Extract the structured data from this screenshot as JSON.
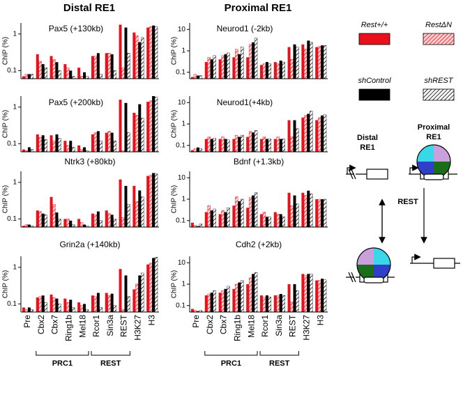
{
  "headers": [
    "Distal RE1",
    "Proximal RE1"
  ],
  "group_labels": [
    "PRC1",
    "REST"
  ],
  "diagram": {
    "distal": [
      "Distal",
      "RE1"
    ],
    "proximal": [
      "Proximal",
      "RE1"
    ],
    "arrow_label": "REST"
  },
  "chart_data": [
    {
      "type": "bar",
      "title": "Pax5 (+130kb)",
      "ylabel": "ChIP  (%)",
      "log": true,
      "ylim": [
        0.06,
        2
      ],
      "yticks": [
        0.1,
        1
      ],
      "categories": [
        "Pre",
        "Cbx2",
        "Cbx7",
        "Ring1b",
        "Mel18",
        "Rcor1",
        "Sin3a",
        "REST",
        "H3K27",
        "H3"
      ],
      "series": [
        {
          "name": "Rest+/+",
          "color": "#e8101a",
          "values": [
            0.07,
            0.28,
            0.25,
            0.15,
            0.12,
            0.25,
            0.3,
            1.8,
            1.1,
            1.5
          ]
        },
        {
          "name": "RestΔN",
          "color": "#e8101a",
          "pattern": "hatch",
          "values": [
            0.08,
            0.18,
            0.2,
            0.12,
            0.07,
            0.25,
            0.3,
            0.12,
            0.9,
            1.6
          ]
        },
        {
          "name": "shControl",
          "color": "#000000",
          "values": [
            0.08,
            0.15,
            0.17,
            0.1,
            0.09,
            0.3,
            0.28,
            1.5,
            0.6,
            1.7
          ]
        },
        {
          "name": "shREST",
          "color": "#000000",
          "pattern": "hatch",
          "values": [
            0.08,
            0.12,
            0.1,
            0.07,
            0.07,
            0.08,
            0.1,
            0.3,
            0.8,
            1.6
          ]
        }
      ]
    },
    {
      "type": "bar",
      "title": "Pax5 (+200kb)",
      "ylabel": "ChIP  (%)",
      "log": true,
      "ylim": [
        0.06,
        2
      ],
      "yticks": [
        0.1,
        1
      ],
      "categories": [
        "Pre",
        "Cbx2",
        "Cbx7",
        "Ring1b",
        "Mel18",
        "Rcor1",
        "Sin3a",
        "REST",
        "H3K27",
        "H3"
      ],
      "series": [
        {
          "name": "Rest+/+",
          "color": "#e8101a",
          "values": [
            0.07,
            0.18,
            0.17,
            0.12,
            0.09,
            0.18,
            0.2,
            1.6,
            0.7,
            1.4
          ]
        },
        {
          "name": "RestΔN",
          "color": "#e8101a",
          "pattern": "hatch",
          "values": [
            0.065,
            0.15,
            0.12,
            0.09,
            0.07,
            0.2,
            0.22,
            0.065,
            0.6,
            1.5
          ]
        },
        {
          "name": "shControl",
          "color": "#000000",
          "values": [
            0.08,
            0.17,
            0.18,
            0.12,
            0.08,
            0.22,
            0.2,
            1.3,
            1.2,
            2
          ]
        },
        {
          "name": "shREST",
          "color": "#000000",
          "pattern": "hatch",
          "values": [
            0.07,
            0.13,
            0.14,
            0.08,
            0.065,
            0.12,
            0.12,
            0.2,
            0.5,
            1.9
          ]
        }
      ]
    },
    {
      "type": "bar",
      "title": "Ntrk3 (+80kb)",
      "ylabel": "ChIP  (%)",
      "log": true,
      "ylim": [
        0.06,
        2
      ],
      "yticks": [
        0.1,
        1
      ],
      "categories": [
        "Pre",
        "Cbx2",
        "Cbx7",
        "Ring1b",
        "Mel18",
        "Rcor1",
        "Sin3a",
        "REST",
        "H3K27",
        "H3"
      ],
      "series": [
        {
          "name": "Rest+/+",
          "color": "#e8101a",
          "values": [
            0.065,
            0.17,
            0.4,
            0.1,
            0.1,
            0.14,
            0.17,
            1.2,
            0.8,
            1.5
          ]
        },
        {
          "name": "RestΔN",
          "color": "#e8101a",
          "pattern": "hatch",
          "values": [
            0.07,
            0.16,
            0.25,
            0.1,
            0.08,
            0.13,
            0.14,
            0.11,
            0.3,
            1.6
          ]
        },
        {
          "name": "shControl",
          "color": "#000000",
          "values": [
            0.07,
            0.14,
            0.15,
            0.09,
            0.07,
            0.16,
            0.13,
            0.8,
            0.6,
            1.8
          ]
        },
        {
          "name": "shREST",
          "color": "#000000",
          "pattern": "hatch",
          "values": [
            0.065,
            0.13,
            0.1,
            0.07,
            0.065,
            0.09,
            0.1,
            0.25,
            0.4,
            1.7
          ]
        }
      ]
    },
    {
      "type": "bar",
      "title": "Grin2a (+140kb)",
      "ylabel": "ChIP  (%)",
      "log": true,
      "ylim": [
        0.06,
        2
      ],
      "yticks": [
        0.1,
        1
      ],
      "categories": [
        "Pre",
        "Cbx2",
        "Cbx7",
        "Ring1b",
        "Mel18",
        "Rcor1",
        "Sin3a",
        "REST",
        "H3K27",
        "H3"
      ],
      "series": [
        {
          "name": "Rest+/+",
          "color": "#e8101a",
          "values": [
            0.08,
            0.15,
            0.18,
            0.14,
            0.11,
            0.17,
            0.2,
            0.9,
            0.25,
            1.2
          ]
        },
        {
          "name": "RestΔN",
          "color": "#e8101a",
          "pattern": "hatch",
          "values": [
            0.07,
            0.16,
            0.15,
            0.11,
            0.09,
            0.16,
            0.17,
            0.07,
            0.35,
            1.3
          ]
        },
        {
          "name": "shControl",
          "color": "#000000",
          "values": [
            0.08,
            0.17,
            0.14,
            0.13,
            0.1,
            0.2,
            0.19,
            0.6,
            0.6,
            1.8
          ]
        },
        {
          "name": "shREST",
          "color": "#000000",
          "pattern": "hatch",
          "values": [
            0.07,
            0.11,
            0.1,
            0.08,
            0.07,
            0.08,
            0.09,
            0.16,
            0.7,
            1.9
          ]
        }
      ]
    },
    {
      "type": "bar",
      "title": "Neurod1 (-2kb)",
      "ylabel": "ChIP  (%)",
      "log": true,
      "ylim": [
        0.05,
        20
      ],
      "yticks": [
        0.1,
        1,
        10
      ],
      "categories": [
        "Pre",
        "Cbx2",
        "Cbx7",
        "Ring1b",
        "Mel18",
        "Rcor1",
        "Sin3a",
        "REST",
        "H3K27",
        "H3"
      ],
      "series": [
        {
          "name": "Rest+/+",
          "color": "#e8101a",
          "values": [
            0.06,
            0.3,
            0.4,
            0.5,
            0.5,
            0.22,
            0.3,
            1.5,
            2,
            1.5
          ]
        },
        {
          "name": "RestΔN",
          "color": "#e8101a",
          "pattern": "hatch",
          "values": [
            0.08,
            0.5,
            0.6,
            1.2,
            2,
            0.25,
            0.25,
            0.4,
            1.2,
            1.6
          ]
        },
        {
          "name": "shControl",
          "color": "#000000",
          "values": [
            0.07,
            0.4,
            0.7,
            0.7,
            2.5,
            0.3,
            0.35,
            2,
            3,
            1.8
          ]
        },
        {
          "name": "shREST",
          "color": "#000000",
          "pattern": "hatch",
          "values": [
            0.07,
            0.6,
            0.8,
            1.5,
            4,
            0.25,
            0.3,
            1.5,
            2.5,
            1.8
          ]
        }
      ]
    },
    {
      "type": "bar",
      "title": "Neurod1(+4kb)",
      "ylabel": "ChIP  (%)",
      "log": true,
      "ylim": [
        0.05,
        20
      ],
      "yticks": [
        0.1,
        1,
        10
      ],
      "categories": [
        "Pre",
        "Cbx2",
        "Cbx7",
        "Ring1b",
        "Mel18",
        "Rcor1",
        "Sin3a",
        "REST",
        "H3K27",
        "H3"
      ],
      "series": [
        {
          "name": "Rest+/+",
          "color": "#e8101a",
          "values": [
            0.06,
            0.2,
            0.2,
            0.2,
            0.25,
            0.2,
            0.2,
            1.5,
            2,
            1.5
          ]
        },
        {
          "name": "RestΔN",
          "color": "#e8101a",
          "pattern": "hatch",
          "values": [
            0.07,
            0.25,
            0.25,
            0.3,
            0.45,
            0.25,
            0.25,
            0.25,
            2.5,
            2
          ]
        },
        {
          "name": "shControl",
          "color": "#000000",
          "values": [
            0.08,
            0.2,
            0.2,
            0.25,
            0.4,
            0.2,
            0.2,
            1.5,
            3,
            2.5
          ]
        },
        {
          "name": "shREST",
          "color": "#000000",
          "pattern": "hatch",
          "values": [
            0.07,
            0.22,
            0.18,
            0.3,
            0.5,
            0.2,
            0.2,
            0.6,
            4,
            2.7
          ]
        }
      ]
    },
    {
      "type": "bar",
      "title": "Bdnf (+1.3kb)",
      "ylabel": "ChIP  (%)",
      "log": true,
      "ylim": [
        0.05,
        20
      ],
      "yticks": [
        0.1,
        1,
        10
      ],
      "categories": [
        "Pre",
        "Cbx2",
        "Cbx7",
        "Ring1b",
        "Mel18",
        "Rcor1",
        "Sin3a",
        "REST",
        "H3K27",
        "H3"
      ],
      "series": [
        {
          "name": "Rest+/+",
          "color": "#e8101a",
          "values": [
            0.08,
            0.25,
            0.2,
            0.5,
            0.4,
            0.2,
            0.25,
            2,
            2,
            1
          ]
        },
        {
          "name": "RestΔN",
          "color": "#e8101a",
          "pattern": "hatch",
          "values": [
            0.06,
            0.5,
            0.3,
            1.3,
            1.2,
            0.25,
            0.2,
            0.5,
            1.5,
            1
          ]
        },
        {
          "name": "shControl",
          "color": "#000000",
          "values": [
            0.055,
            0.3,
            0.25,
            0.8,
            1.5,
            0.15,
            0.2,
            1.5,
            2.5,
            1
          ]
        },
        {
          "name": "shREST",
          "color": "#000000",
          "pattern": "hatch",
          "values": [
            0.07,
            0.35,
            0.4,
            1,
            2,
            0.15,
            0.15,
            0.6,
            1.8,
            1
          ]
        }
      ]
    },
    {
      "type": "bar",
      "title": "Cdh2 (+2kb)",
      "ylabel": "ChIP  (%)",
      "log": true,
      "ylim": [
        0.05,
        20
      ],
      "yticks": [
        0.1,
        1,
        10
      ],
      "categories": [
        "Pre",
        "Cbx2",
        "Cbx7",
        "Ring1b",
        "Mel18",
        "Rcor1",
        "Sin3a",
        "REST",
        "H3K27",
        "H3"
      ],
      "series": [
        {
          "name": "Rest+/+",
          "color": "#e8101a",
          "values": [
            0.07,
            0.3,
            0.4,
            0.6,
            1,
            0.3,
            0.3,
            1,
            3,
            1.5
          ]
        },
        {
          "name": "RestΔN",
          "color": "#e8101a",
          "pattern": "hatch",
          "values": [
            0.06,
            0.35,
            0.5,
            1,
            2,
            0.25,
            0.3,
            0.15,
            2.5,
            1.5
          ]
        },
        {
          "name": "shControl",
          "color": "#000000",
          "values": [
            0.055,
            0.4,
            0.6,
            1.2,
            3,
            0.3,
            0.35,
            1,
            3,
            1.8
          ]
        },
        {
          "name": "shREST",
          "color": "#000000",
          "pattern": "hatch",
          "values": [
            0.06,
            0.5,
            0.8,
            1.5,
            3.5,
            0.25,
            0.3,
            0.5,
            3,
            1.6
          ]
        }
      ]
    }
  ]
}
